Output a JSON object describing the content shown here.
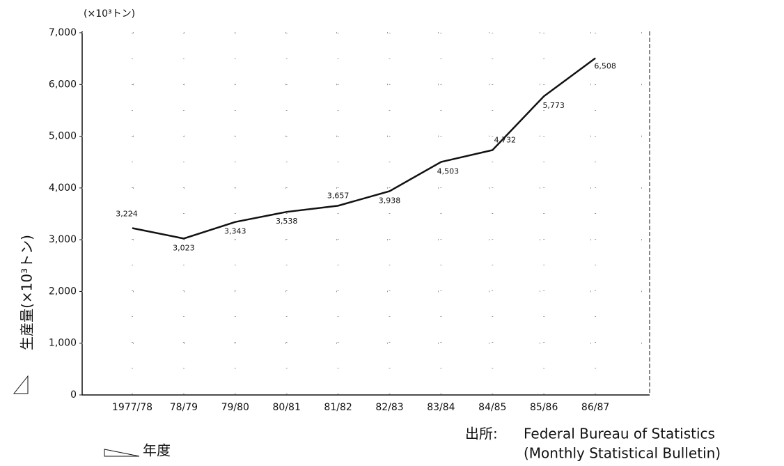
{
  "chart_data": {
    "type": "line",
    "unit_label": "(×10³トン)",
    "y_axis_label": "生産量(×10³トン)",
    "x_axis_label": "年度",
    "source_label": "出所:",
    "source_lines": [
      "Federal Bureau of Statistics",
      "(Monthly Statistical Bulletin)"
    ],
    "categories": [
      "1977/78",
      "78/79",
      "79/80",
      "80/81",
      "81/82",
      "82/83",
      "83/84",
      "84/85",
      "85/86",
      "86/87"
    ],
    "values": [
      3224,
      3023,
      3343,
      3538,
      3657,
      3938,
      4503,
      4732,
      5773,
      6508
    ],
    "value_labels": [
      "3,224",
      "3,023",
      "3,343",
      "3,538",
      "3,657",
      "3,938",
      "4,503",
      "4,732",
      "5,773",
      "6,508"
    ],
    "color": "#111111",
    "ylim": [
      0,
      7000
    ],
    "yticks": [
      0,
      {
        "value": 1000,
        "label": "1,000"
      },
      {
        "value": 2000,
        "label": "2,000"
      },
      {
        "value": 3000,
        "label": "3,000"
      },
      {
        "value": 4000,
        "label": "4,000"
      },
      {
        "value": 5000,
        "label": "5,000"
      },
      {
        "value": 6000,
        "label": "6,000"
      },
      {
        "value": 7000,
        "label": "7,000"
      }
    ],
    "grid": true
  }
}
